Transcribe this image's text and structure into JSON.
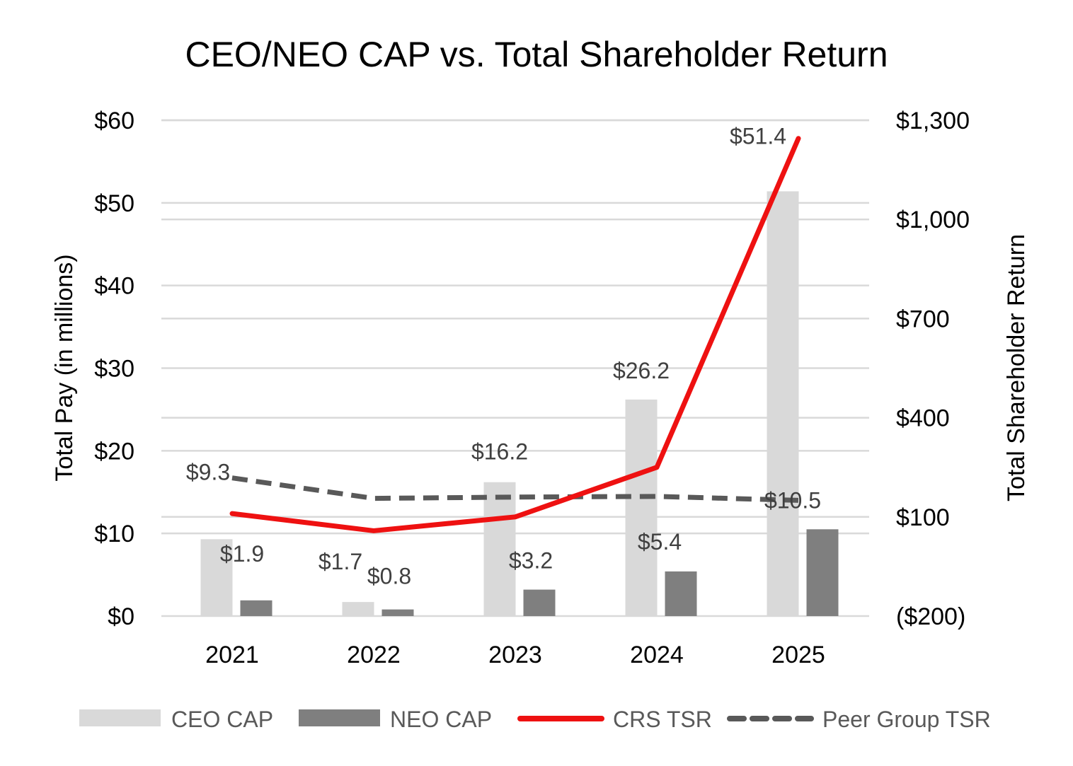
{
  "chart_data": {
    "type": "bar",
    "title": "CEO/NEO CAP vs. Total Shareholder Return",
    "categories": [
      "2021",
      "2022",
      "2023",
      "2024",
      "2025"
    ],
    "y_left": {
      "label": "Total Pay (in millions)",
      "lim": [
        0,
        60
      ],
      "ticks": [
        0,
        10,
        20,
        30,
        40,
        50,
        60
      ],
      "tick_labels": [
        "$0",
        "$10",
        "$20",
        "$30",
        "$40",
        "$50",
        "$60"
      ]
    },
    "y_right": {
      "label": "Total Shareholder Return",
      "lim": [
        -200,
        1300
      ],
      "ticks": [
        -200,
        100,
        400,
        700,
        1000,
        1300
      ],
      "tick_labels": [
        "($200)",
        "$100",
        "$400",
        "$700",
        "$1,000",
        "$1,300"
      ]
    },
    "grid": true,
    "legend_position": "bottom",
    "series": [
      {
        "name": "CEO CAP",
        "kind": "bar",
        "axis": "left",
        "color": "#d9d9d9",
        "values": [
          9.3,
          1.7,
          16.2,
          26.2,
          51.4
        ],
        "labels": [
          "$9.3",
          "$1.7",
          "$16.2",
          "$26.2",
          "$51.4"
        ]
      },
      {
        "name": "NEO CAP",
        "kind": "bar",
        "axis": "left",
        "color": "#7f7f7f",
        "values": [
          1.9,
          0.8,
          3.2,
          5.4,
          10.5
        ],
        "labels": [
          "$1.9",
          "$0.8",
          "$3.2",
          "$5.4",
          "$10.5"
        ]
      },
      {
        "name": "CRS TSR",
        "kind": "line",
        "axis": "right",
        "color": "#ee1111",
        "values": [
          110,
          58,
          100,
          250,
          1245
        ]
      },
      {
        "name": "Peer Group TSR",
        "kind": "line-dashed",
        "axis": "right",
        "color": "#595959",
        "values": [
          218,
          156,
          160,
          162,
          150
        ]
      }
    ]
  }
}
